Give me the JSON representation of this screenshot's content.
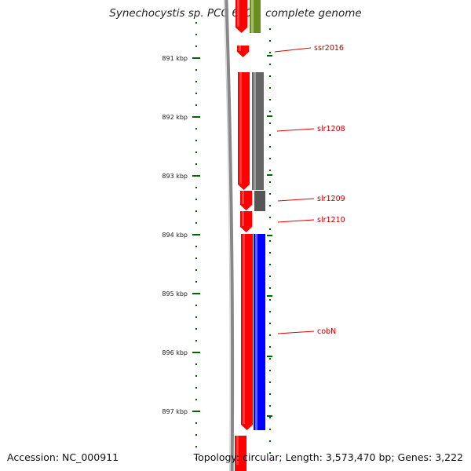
{
  "title": "Synechocystis sp. PCC 6803, complete genome",
  "accession": "Accession: NC_000911",
  "stats": "Topology: circular; Length: 3,573,470 bp; Genes: 3,222",
  "ticks": [
    {
      "label": "891 kbp"
    },
    {
      "label": "892 kbp"
    },
    {
      "label": "893 kbp"
    },
    {
      "label": "894 kbp"
    },
    {
      "label": "895 kbp"
    },
    {
      "label": "896 kbp"
    },
    {
      "label": "897 kbp"
    }
  ],
  "genes": [
    {
      "name": "ssr2016",
      "color": "#e00000"
    },
    {
      "name": "slr1208",
      "color": "#e00000"
    },
    {
      "name": "slr1209",
      "color": "#e00000"
    },
    {
      "name": "slr1210",
      "color": "#e00000"
    },
    {
      "name": "cobN",
      "color": "#e00000"
    }
  ],
  "colors": {
    "cds": "#ff0000",
    "grey_feature": "#666666",
    "blue_feature": "#0000ff",
    "green_feature": "#6b8e23",
    "backbone": "#888888",
    "tick": "#006400",
    "label": "#b00000"
  }
}
